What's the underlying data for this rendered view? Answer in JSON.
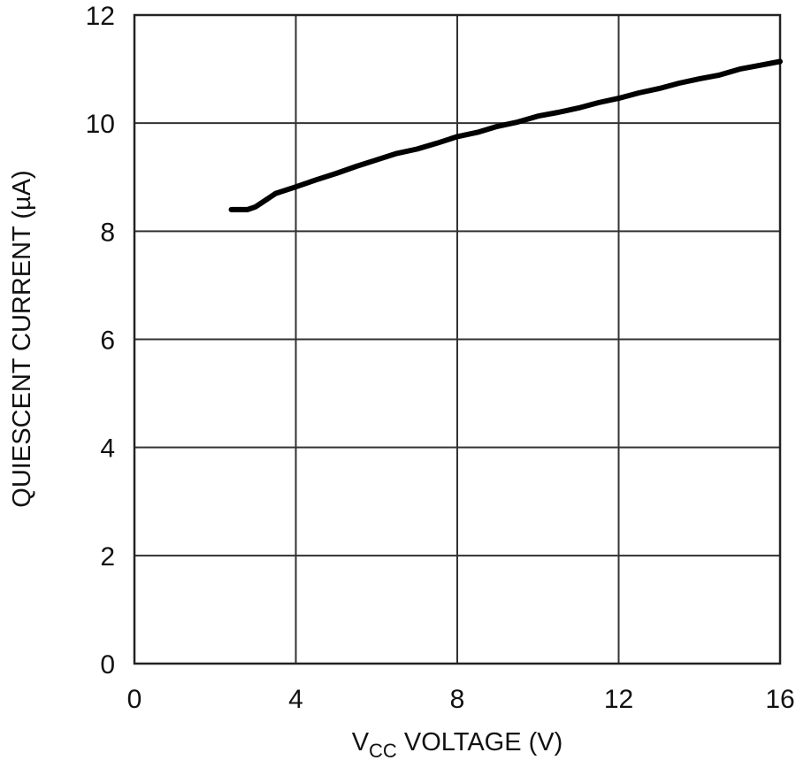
{
  "chart_data": {
    "type": "line",
    "title": "",
    "xlabel": "VCC VOLTAGE (V)",
    "xlabel_main": "V",
    "xlabel_sub": "CC",
    "xlabel_rest": " VOLTAGE (V)",
    "ylabel": "QUIESCENT CURRENT (µA)",
    "xlim": [
      0,
      16
    ],
    "ylim": [
      0,
      12
    ],
    "xticks": [
      "0",
      "4",
      "8",
      "12",
      "16"
    ],
    "yticks": [
      "0",
      "2",
      "4",
      "6",
      "8",
      "10",
      "12"
    ],
    "grid": true,
    "legend": null,
    "series": [
      {
        "name": "Quiescent Current",
        "x": [
          2.4,
          2.8,
          3.0,
          3.2,
          3.5,
          4.0,
          4.5,
          5.0,
          5.5,
          6.0,
          6.5,
          7.0,
          7.5,
          8.0,
          8.5,
          9.0,
          9.5,
          10.0,
          10.5,
          11.0,
          11.5,
          12.0,
          12.5,
          13.0,
          13.5,
          14.0,
          14.5,
          15.0,
          15.5,
          16.0
        ],
        "y": [
          8.4,
          8.4,
          8.45,
          8.55,
          8.7,
          8.82,
          8.95,
          9.07,
          9.2,
          9.32,
          9.44,
          9.52,
          9.63,
          9.75,
          9.83,
          9.94,
          10.02,
          10.13,
          10.2,
          10.28,
          10.38,
          10.46,
          10.56,
          10.64,
          10.74,
          10.82,
          10.89,
          11.0,
          11.07,
          11.14
        ]
      }
    ]
  }
}
